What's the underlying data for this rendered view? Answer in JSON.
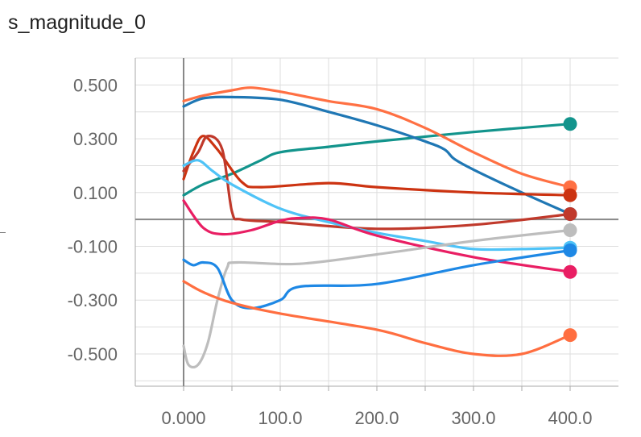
{
  "chart_data": {
    "type": "line",
    "title": "s_magnitude_0",
    "xlabel": "",
    "ylabel": "",
    "xlim": [
      -50,
      450
    ],
    "ylim": [
      -0.62,
      0.6
    ],
    "x_ticks": [
      0,
      50,
      100,
      150,
      200,
      250,
      300,
      350,
      400
    ],
    "x_tick_labels": [
      "0.000",
      "100.0",
      "200.0",
      "300.0",
      "400.0"
    ],
    "x_tick_label_values": [
      0,
      100,
      200,
      300,
      400
    ],
    "y_ticks": [
      0.5,
      0.3,
      0.1,
      -0.1,
      -0.3,
      -0.5
    ],
    "y_tick_labels": [
      "0.500",
      "0.300",
      "0.100",
      "-0.100",
      "-0.300",
      "-0.500"
    ],
    "grid": true,
    "legend": "none",
    "series": [
      {
        "color": "#12948c",
        "points": [
          [
            0,
            0.09
          ],
          [
            20,
            0.13
          ],
          [
            50,
            0.17
          ],
          [
            80,
            0.22
          ],
          [
            100,
            0.25
          ],
          [
            150,
            0.27
          ],
          [
            200,
            0.29
          ],
          [
            300,
            0.325
          ],
          [
            400,
            0.355
          ]
        ]
      },
      {
        "color": "#ff7043",
        "points": [
          [
            0,
            0.44
          ],
          [
            20,
            0.46
          ],
          [
            50,
            0.48
          ],
          [
            70,
            0.49
          ],
          [
            100,
            0.475
          ],
          [
            150,
            0.44
          ],
          [
            200,
            0.41
          ],
          [
            250,
            0.34
          ],
          [
            300,
            0.25
          ],
          [
            350,
            0.17
          ],
          [
            400,
            0.12
          ]
        ]
      },
      {
        "color": "#1f77b4",
        "points": [
          [
            0,
            0.42
          ],
          [
            20,
            0.45
          ],
          [
            50,
            0.455
          ],
          [
            100,
            0.445
          ],
          [
            150,
            0.4
          ],
          [
            200,
            0.35
          ],
          [
            250,
            0.29
          ],
          [
            270,
            0.26
          ],
          [
            280,
            0.225
          ],
          [
            300,
            0.185
          ],
          [
            350,
            0.1
          ],
          [
            400,
            0.02
          ]
        ]
      },
      {
        "color": "#cc3311",
        "points": [
          [
            0,
            0.15
          ],
          [
            10,
            0.25
          ],
          [
            20,
            0.31
          ],
          [
            35,
            0.26
          ],
          [
            60,
            0.14
          ],
          [
            80,
            0.12
          ],
          [
            150,
            0.135
          ],
          [
            200,
            0.12
          ],
          [
            300,
            0.1
          ],
          [
            400,
            0.09
          ]
        ]
      },
      {
        "color": "#c0392b",
        "points": [
          [
            0,
            0.18
          ],
          [
            15,
            0.25
          ],
          [
            25,
            0.31
          ],
          [
            40,
            0.26
          ],
          [
            50,
            0.03
          ],
          [
            60,
            0.0
          ],
          [
            100,
            -0.01
          ],
          [
            200,
            -0.035
          ],
          [
            300,
            -0.02
          ],
          [
            400,
            0.02
          ]
        ]
      },
      {
        "color": "#4fc3f7",
        "points": [
          [
            0,
            0.2
          ],
          [
            15,
            0.22
          ],
          [
            30,
            0.18
          ],
          [
            50,
            0.13
          ],
          [
            100,
            0.04
          ],
          [
            150,
            -0.01
          ],
          [
            200,
            -0.05
          ],
          [
            250,
            -0.08
          ],
          [
            300,
            -0.11
          ],
          [
            350,
            -0.11
          ],
          [
            400,
            -0.105
          ]
        ]
      },
      {
        "color": "#e91e63",
        "points": [
          [
            0,
            0.07
          ],
          [
            20,
            -0.03
          ],
          [
            40,
            -0.055
          ],
          [
            70,
            -0.04
          ],
          [
            100,
            -0.005
          ],
          [
            120,
            0.005
          ],
          [
            150,
            0.0
          ],
          [
            200,
            -0.06
          ],
          [
            300,
            -0.14
          ],
          [
            400,
            -0.195
          ]
        ]
      },
      {
        "color": "#bdbdbd",
        "points": [
          [
            0,
            -0.47
          ],
          [
            5,
            -0.54
          ],
          [
            15,
            -0.54
          ],
          [
            25,
            -0.46
          ],
          [
            35,
            -0.3
          ],
          [
            45,
            -0.18
          ],
          [
            55,
            -0.16
          ],
          [
            120,
            -0.165
          ],
          [
            200,
            -0.13
          ],
          [
            300,
            -0.08
          ],
          [
            400,
            -0.04
          ]
        ]
      },
      {
        "color": "#1e88e5",
        "points": [
          [
            0,
            -0.15
          ],
          [
            10,
            -0.17
          ],
          [
            20,
            -0.16
          ],
          [
            35,
            -0.18
          ],
          [
            50,
            -0.3
          ],
          [
            70,
            -0.33
          ],
          [
            100,
            -0.3
          ],
          [
            120,
            -0.25
          ],
          [
            200,
            -0.24
          ],
          [
            300,
            -0.17
          ],
          [
            400,
            -0.115
          ]
        ]
      },
      {
        "color": "#ff6e40",
        "points": [
          [
            0,
            -0.23
          ],
          [
            20,
            -0.27
          ],
          [
            50,
            -0.31
          ],
          [
            100,
            -0.35
          ],
          [
            200,
            -0.41
          ],
          [
            250,
            -0.46
          ],
          [
            300,
            -0.5
          ],
          [
            350,
            -0.5
          ],
          [
            400,
            -0.43
          ]
        ]
      }
    ]
  }
}
